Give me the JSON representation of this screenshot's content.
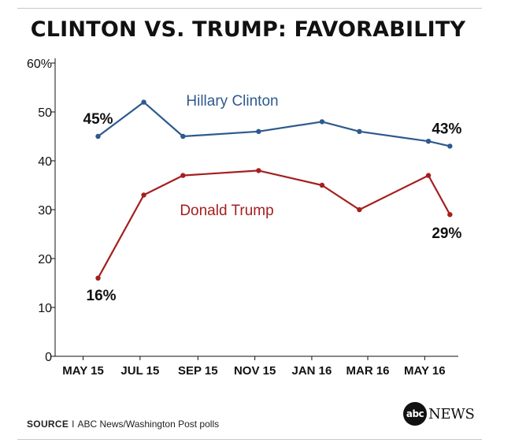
{
  "title": "CLINTON VS. TRUMP: FAVORABILITY",
  "source": {
    "label": "SOURCE",
    "separator": "I",
    "text": "ABC News/Washington Post polls"
  },
  "logo": {
    "disc_text": "abc",
    "word": "NEWS"
  },
  "chart_data": {
    "type": "line",
    "title": "CLINTON VS. TRUMP: FAVORABILITY",
    "xlabel": "",
    "ylabel": "",
    "ylim": [
      0,
      60
    ],
    "y_ticks": [
      0,
      10,
      20,
      30,
      40,
      50,
      60
    ],
    "y_tick_labels": [
      "0",
      "10",
      "20",
      "30",
      "40",
      "50",
      "60%"
    ],
    "x_range": [
      "2015-04-15",
      "2016-06-20"
    ],
    "x_ticks": [
      {
        "label": "MAY 15",
        "date": "2015-05-15"
      },
      {
        "label": "JUL 15",
        "date": "2015-07-15"
      },
      {
        "label": "SEP 15",
        "date": "2015-09-15"
      },
      {
        "label": "NOV 15",
        "date": "2015-11-15"
      },
      {
        "label": "JAN 16",
        "date": "2016-01-15"
      },
      {
        "label": "MAR 16",
        "date": "2016-03-15"
      },
      {
        "label": "MAY 16",
        "date": "2016-05-15"
      }
    ],
    "grid": false,
    "legend": "inline",
    "series": [
      {
        "name": "Hillary Clinton",
        "color": "#2e5a8e",
        "points": [
          {
            "x": "2015-05-31",
            "y": 45
          },
          {
            "x": "2015-07-19",
            "y": 52
          },
          {
            "x": "2015-08-30",
            "y": 45
          },
          {
            "x": "2015-11-19",
            "y": 46
          },
          {
            "x": "2016-01-26",
            "y": 48
          },
          {
            "x": "2016-03-06",
            "y": 46
          },
          {
            "x": "2016-05-19",
            "y": 44
          },
          {
            "x": "2016-06-11",
            "y": 43
          }
        ],
        "annotations": [
          {
            "index": 0,
            "text": "45%"
          },
          {
            "index": 7,
            "text": "43%"
          }
        ]
      },
      {
        "name": "Donald Trump",
        "color": "#a51f1f",
        "points": [
          {
            "x": "2015-05-31",
            "y": 16
          },
          {
            "x": "2015-07-19",
            "y": 33
          },
          {
            "x": "2015-08-30",
            "y": 37
          },
          {
            "x": "2015-11-19",
            "y": 38
          },
          {
            "x": "2016-01-26",
            "y": 35
          },
          {
            "x": "2016-03-06",
            "y": 30
          },
          {
            "x": "2016-05-19",
            "y": 37
          },
          {
            "x": "2016-06-11",
            "y": 29
          }
        ],
        "annotations": [
          {
            "index": 0,
            "text": "16%"
          },
          {
            "index": 7,
            "text": "29%"
          }
        ]
      }
    ]
  }
}
